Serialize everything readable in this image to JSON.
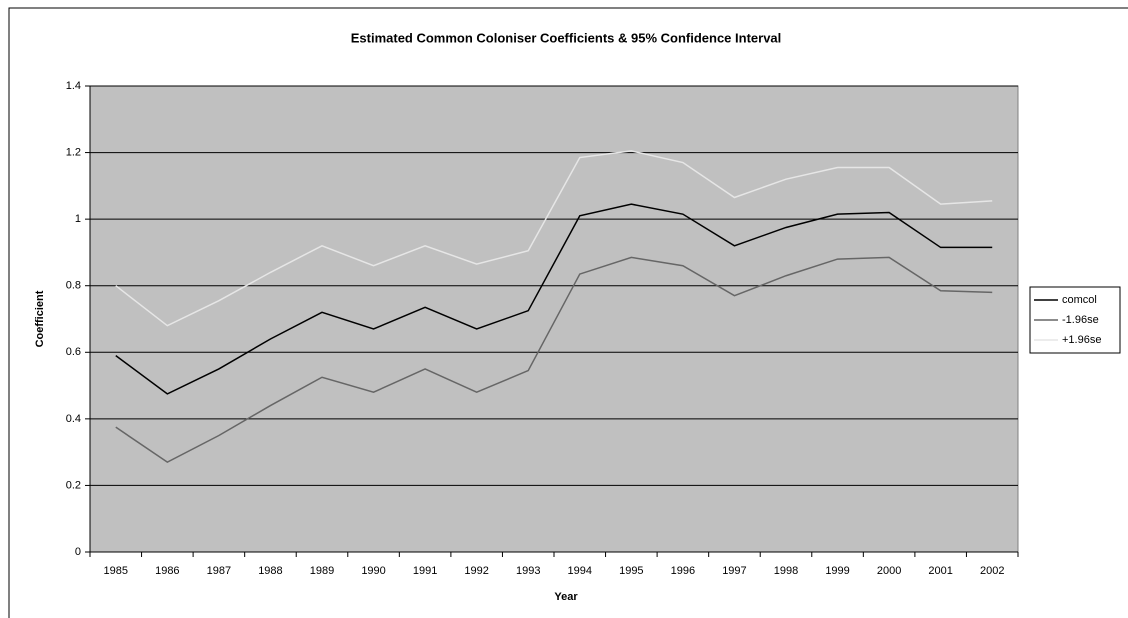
{
  "chart_data": {
    "type": "line",
    "title": "Estimated Common Coloniser Coefficients & 95% Confidence Interval",
    "x_label": "Year",
    "y_label": "Coefficient",
    "categories": [
      "1985",
      "1986",
      "1987",
      "1988",
      "1989",
      "1990",
      "1991",
      "1992",
      "1993",
      "1994",
      "1995",
      "1996",
      "1997",
      "1998",
      "1999",
      "2000",
      "2001",
      "2002"
    ],
    "series": [
      {
        "name": "comcol",
        "color": "#000000",
        "values": [
          0.59,
          0.475,
          0.55,
          0.64,
          0.72,
          0.67,
          0.735,
          0.67,
          0.725,
          1.01,
          1.045,
          1.015,
          0.92,
          0.975,
          1.015,
          1.02,
          0.915,
          0.915
        ]
      },
      {
        "name": "-1.96se",
        "color": "#666666",
        "values": [
          0.375,
          0.27,
          0.35,
          0.44,
          0.525,
          0.48,
          0.55,
          0.48,
          0.545,
          0.835,
          0.885,
          0.86,
          0.77,
          0.83,
          0.88,
          0.885,
          0.785,
          0.78
        ]
      },
      {
        "name": "+1.96se",
        "color": "#e6e6e6",
        "values": [
          0.8,
          0.68,
          0.755,
          0.84,
          0.92,
          0.86,
          0.92,
          0.865,
          0.905,
          1.185,
          1.205,
          1.17,
          1.065,
          1.12,
          1.155,
          1.155,
          1.045,
          1.055
        ]
      }
    ],
    "ylim": [
      0,
      1.4
    ],
    "yticks": [
      0,
      0.2,
      0.4,
      0.6,
      0.8,
      1,
      1.2,
      1.4
    ],
    "grid": true,
    "legend": "right",
    "plot_background": "#c0c0c0"
  }
}
